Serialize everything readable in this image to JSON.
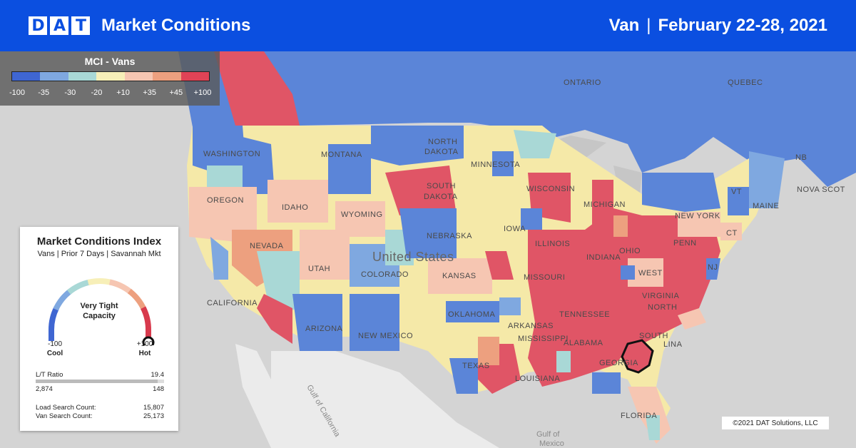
{
  "header": {
    "logo": [
      "D",
      "A",
      "T"
    ],
    "title": "Market Conditions",
    "equipment": "Van",
    "separator": "|",
    "date_range": "February 22-28, 2021"
  },
  "legend": {
    "title": "MCI - Vans",
    "colors": [
      "#3f66d2",
      "#7fa8e0",
      "#a9d8d6",
      "#f7efb8",
      "#f6c6b2",
      "#eda07f",
      "#e04356"
    ],
    "ticks": [
      {
        "label": "-100",
        "value": -100
      },
      {
        "label": "-35",
        "value": -35
      },
      {
        "label": "-30",
        "value": -30
      },
      {
        "label": "-20",
        "value": -20
      },
      {
        "label": "+10",
        "value": 10
      },
      {
        "label": "+35",
        "value": 35
      },
      {
        "label": "+45",
        "value": 45
      },
      {
        "label": "+100",
        "value": 100
      }
    ]
  },
  "map_labels": {
    "ontario": "ONTARIO",
    "quebec": "QUEBEC",
    "washington": "WASHINGTON",
    "montana": "MONTANA",
    "north_dakota_1": "NORTH",
    "north_dakota_2": "DAKOTA",
    "minnesota": "MINNESOTA",
    "oregon": "OREGON",
    "idaho": "IDAHO",
    "south_dakota_1": "SOUTH",
    "south_dakota_2": "DAKOTA",
    "wisconsin": "WISCONSIN",
    "michigan": "MICHIGAN",
    "wyoming": "WYOMING",
    "iowa": "IOWA",
    "nebraska": "NEBRASKA",
    "nevada": "NEVADA",
    "united_states": "United States",
    "utah": "UTAH",
    "colorado": "COLORADO",
    "kansas": "KANSAS",
    "illinois": "ILLINOIS",
    "indiana": "INDIANA",
    "ohio": "OHIO",
    "penn": "PENN",
    "new_york": "NEW YORK",
    "maine": "MAINE",
    "nb": "NB",
    "nova_scotia": "NOVA SCOT",
    "nj": "NJ",
    "west": "WEST",
    "virginia": "VIRGINIA",
    "missouri": "MISSOURI",
    "california": "CALIFORNIA",
    "arizona": "ARIZONA",
    "new_mexico": "NEW MEXICO",
    "oklahoma": "OKLAHOMA",
    "arkansas": "ARKANSAS",
    "tennessee": "TENNESSEE",
    "north": "NORTH",
    "south": "SOUTH",
    "lina": "LINA",
    "mississippi": "MISSISSIPPI",
    "alabama": "ALABAMA",
    "georgia": "GEORGIA",
    "texas": "TEXAS",
    "louisiana": "LOUISIANA",
    "florida": "FLORIDA",
    "gulf_mexico_1": "Gulf of",
    "gulf_mexico_2": "Mexico",
    "gulf_california": "Gulf of California",
    "vt": "VT",
    "ct": "CT"
  },
  "mci_panel": {
    "title": "Market Conditions Index",
    "subtitle": "Vans | Prior 7 Days | Savannah Mkt",
    "gauge_label_1": "Very Tight",
    "gauge_label_2": "Capacity",
    "gauge_value": 100,
    "min_label": "-100",
    "min_desc": "Cool",
    "max_label": "+100",
    "max_desc": "Hot",
    "lt_ratio_label": "L/T Ratio",
    "lt_ratio_value": "19.4",
    "lt_left": "2,874",
    "lt_right": "148",
    "load_search_label": "Load Search Count:",
    "load_search_value": "15,807",
    "van_search_label": "Van Search Count:",
    "van_search_value": "25,173"
  },
  "copyright": "©2021 DAT Solutions, LLC"
}
